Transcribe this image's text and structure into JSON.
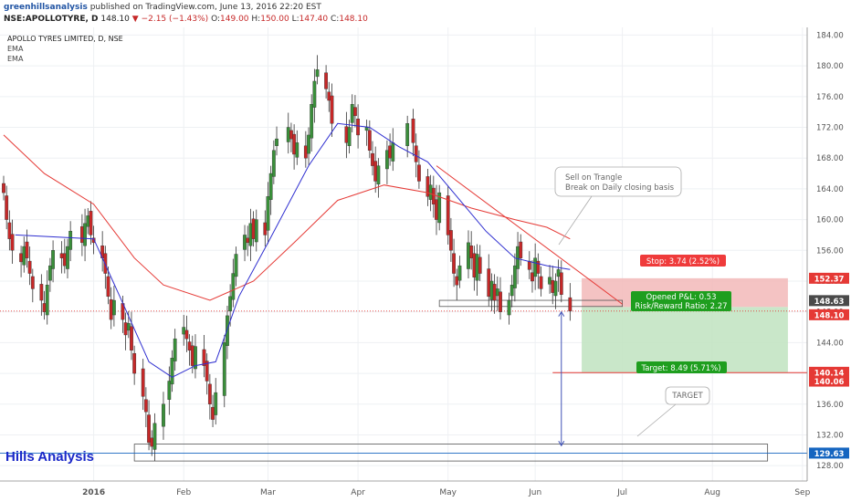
{
  "header": {
    "author": "greenhillsanalysis",
    "published": "published on TradingView.com, June 13, 2016 22:20 EST",
    "symbol": "NSE:APOLLOTYRE, D",
    "last": "148.10",
    "change": "−2.15 (−1.43%)",
    "o_label": "O:",
    "o_value": "149.00",
    "h_label": "H:",
    "h_value": "150.00",
    "l_label": "L:",
    "l_value": "147.40",
    "c_label": "C:",
    "c_value": "148.10"
  },
  "chart_title": "APOLLO TYRES LIMITED, D, NSE",
  "indicators": [
    "EMA",
    "EMA"
  ],
  "brand": "Hills Analysis",
  "annotations": {
    "sell_note_line1": "Sell on Trangle",
    "sell_note_line2": "Break on Daily closing basis",
    "target_note": "TARGET",
    "stop_label": "Stop: 3.74 (2.52%)",
    "pnl_line1": "Opened P&L: 0.53",
    "pnl_line2": "Risk/Reward Ratio: 2.27",
    "target_label": "Target: 8.49 (5.71%)"
  },
  "price_tags": [
    {
      "text": "152.37",
      "value": 152.37,
      "color": "#e53935"
    },
    {
      "text": "148.63",
      "value": 148.63,
      "color": "#4a4a4a"
    },
    {
      "text": "148.10",
      "value": 148.1,
      "color": "#e53935"
    },
    {
      "text": "140.14",
      "value": 140.14,
      "color": "#e53935"
    },
    {
      "text": "140.06",
      "value": 140.06,
      "color": "#e53935"
    },
    {
      "text": "129.63",
      "value": 129.63,
      "color": "#1565c0"
    }
  ],
  "colors": {
    "up": "#3a8f3a",
    "down": "#c62828",
    "ema_fast": "#2f2fd0",
    "ema_slow": "#e53935",
    "stop_zone": "#f2b8b8",
    "target_zone": "#bfe3bf"
  },
  "chart_data": {
    "type": "candlestick",
    "title": "APOLLO TYRES LIMITED, D, NSE",
    "ylim": [
      126,
      185
    ],
    "y_ticks": [
      "128.00",
      "132.00",
      "136.00",
      "140.00",
      "144.00",
      "148.00",
      "152.00",
      "156.00",
      "160.00",
      "164.00",
      "168.00",
      "172.00",
      "176.00",
      "180.00",
      "184.00"
    ],
    "y_tick_values": [
      128,
      132,
      136,
      140,
      144,
      148,
      152,
      156,
      160,
      164,
      168,
      172,
      176,
      180,
      184
    ],
    "x_ticks": [
      "2016",
      "Feb",
      "Mar",
      "Apr",
      "May",
      "Jun",
      "Jul",
      "Aug",
      "Sep"
    ],
    "x_tick_dates": [
      "2016-01-01",
      "2016-02-01",
      "2016-03-01",
      "2016-04-01",
      "2016-05-02",
      "2016-06-01",
      "2016-07-01",
      "2016-08-01",
      "2016-09-01"
    ],
    "start_date": "2015-12-01",
    "end_date": "2016-09-02",
    "closes": [
      [
        "2015-12-01",
        163.5
      ],
      [
        "2015-12-02",
        160.0
      ],
      [
        "2015-12-03",
        157.5
      ],
      [
        "2015-12-04",
        156.0
      ],
      [
        "2015-12-07",
        154.5
      ],
      [
        "2015-12-08",
        156.5
      ],
      [
        "2015-12-09",
        155.0
      ],
      [
        "2015-12-10",
        153.0
      ],
      [
        "2015-12-11",
        151.0
      ],
      [
        "2015-12-14",
        149.5
      ],
      [
        "2015-12-15",
        148.0
      ],
      [
        "2015-12-16",
        151.5
      ],
      [
        "2015-12-17",
        154.0
      ],
      [
        "2015-12-18",
        156.0
      ],
      [
        "2015-12-21",
        155.0
      ],
      [
        "2015-12-22",
        154.0
      ],
      [
        "2015-12-23",
        156.5
      ],
      [
        "2015-12-24",
        158.5
      ],
      [
        "2015-12-28",
        157.0
      ],
      [
        "2015-12-29",
        159.5
      ],
      [
        "2015-12-30",
        160.5
      ],
      [
        "2015-12-31",
        158.0
      ],
      [
        "2016-01-01",
        157.0
      ],
      [
        "2016-01-04",
        155.0
      ],
      [
        "2016-01-05",
        153.0
      ],
      [
        "2016-01-06",
        150.0
      ],
      [
        "2016-01-07",
        147.0
      ],
      [
        "2016-01-08",
        149.5
      ],
      [
        "2016-01-11",
        147.0
      ],
      [
        "2016-01-12",
        145.0
      ],
      [
        "2016-01-13",
        146.5
      ],
      [
        "2016-01-14",
        143.0
      ],
      [
        "2016-01-15",
        140.0
      ],
      [
        "2016-01-18",
        137.0
      ],
      [
        "2016-01-19",
        135.0
      ],
      [
        "2016-01-20",
        131.0
      ],
      [
        "2016-01-21",
        130.5
      ],
      [
        "2016-01-22",
        133.5
      ],
      [
        "2016-01-25",
        136.0
      ],
      [
        "2016-01-27",
        139.0
      ],
      [
        "2016-01-28",
        142.0
      ],
      [
        "2016-01-29",
        144.5
      ],
      [
        "2016-02-01",
        146.0
      ],
      [
        "2016-02-02",
        144.5
      ],
      [
        "2016-02-03",
        143.0
      ],
      [
        "2016-02-04",
        141.0
      ],
      [
        "2016-02-05",
        143.5
      ],
      [
        "2016-02-08",
        141.0
      ],
      [
        "2016-02-09",
        139.0
      ],
      [
        "2016-02-10",
        136.0
      ],
      [
        "2016-02-11",
        134.0
      ],
      [
        "2016-02-12",
        137.5
      ],
      [
        "2016-02-15",
        144.0
      ],
      [
        "2016-02-16",
        147.5
      ],
      [
        "2016-02-17",
        150.0
      ],
      [
        "2016-02-18",
        153.0
      ],
      [
        "2016-02-19",
        155.5
      ],
      [
        "2016-02-22",
        158.0
      ],
      [
        "2016-02-23",
        157.0
      ],
      [
        "2016-02-24",
        159.5
      ],
      [
        "2016-02-25",
        157.5
      ],
      [
        "2016-02-26",
        160.0
      ],
      [
        "2016-02-29",
        158.0
      ],
      [
        "2016-03-01",
        163.0
      ],
      [
        "2016-03-02",
        166.0
      ],
      [
        "2016-03-03",
        169.0
      ],
      [
        "2016-03-04",
        170.5
      ],
      [
        "2016-03-08",
        172.0
      ],
      [
        "2016-03-09",
        170.5
      ],
      [
        "2016-03-10",
        168.5
      ],
      [
        "2016-03-11",
        170.0
      ],
      [
        "2016-03-14",
        168.0
      ],
      [
        "2016-03-15",
        171.0
      ],
      [
        "2016-03-16",
        175.0
      ],
      [
        "2016-03-17",
        178.0
      ],
      [
        "2016-03-18",
        179.5
      ],
      [
        "2016-03-21",
        177.0
      ],
      [
        "2016-03-22",
        175.5
      ],
      [
        "2016-03-23",
        172.5
      ],
      [
        "2016-03-28",
        170.0
      ],
      [
        "2016-03-29",
        172.0
      ],
      [
        "2016-03-30",
        175.0
      ],
      [
        "2016-03-31",
        173.5
      ],
      [
        "2016-04-01",
        171.0
      ],
      [
        "2016-04-04",
        172.0
      ],
      [
        "2016-04-05",
        169.0
      ],
      [
        "2016-04-06",
        167.0
      ],
      [
        "2016-04-07",
        165.0
      ],
      [
        "2016-04-08",
        167.0
      ],
      [
        "2016-04-11",
        169.0
      ],
      [
        "2016-04-12",
        168.0
      ],
      [
        "2016-04-13",
        170.0
      ],
      [
        "2016-04-18",
        172.5
      ],
      [
        "2016-04-20",
        170.0
      ],
      [
        "2016-04-21",
        167.5
      ],
      [
        "2016-04-22",
        165.0
      ],
      [
        "2016-04-25",
        163.0
      ],
      [
        "2016-04-26",
        164.5
      ],
      [
        "2016-04-27",
        162.0
      ],
      [
        "2016-04-28",
        160.0
      ],
      [
        "2016-04-29",
        163.5
      ],
      [
        "2016-05-02",
        158.0
      ],
      [
        "2016-05-03",
        156.0
      ],
      [
        "2016-05-04",
        153.0
      ],
      [
        "2016-05-05",
        151.5
      ],
      [
        "2016-05-06",
        154.0
      ],
      [
        "2016-05-09",
        157.0
      ],
      [
        "2016-05-10",
        155.0
      ],
      [
        "2016-05-11",
        152.5
      ],
      [
        "2016-05-12",
        155.5
      ],
      [
        "2016-05-13",
        153.0
      ],
      [
        "2016-05-16",
        150.0
      ],
      [
        "2016-05-17",
        152.0
      ],
      [
        "2016-05-18",
        149.5
      ],
      [
        "2016-05-19",
        151.0
      ],
      [
        "2016-05-20",
        148.0
      ],
      [
        "2016-05-23",
        149.5
      ],
      [
        "2016-05-24",
        151.5
      ],
      [
        "2016-05-25",
        154.0
      ],
      [
        "2016-05-26",
        156.5
      ],
      [
        "2016-05-27",
        155.0
      ],
      [
        "2016-05-30",
        153.5
      ],
      [
        "2016-05-31",
        152.0
      ],
      [
        "2016-06-01",
        155.0
      ],
      [
        "2016-06-02",
        153.0
      ],
      [
        "2016-06-03",
        151.0
      ],
      [
        "2016-06-06",
        152.5
      ],
      [
        "2016-06-07",
        150.5
      ],
      [
        "2016-06-08",
        152.0
      ],
      [
        "2016-06-09",
        153.5
      ],
      [
        "2016-06-10",
        150.25
      ],
      [
        "2016-06-13",
        148.1
      ]
    ],
    "ema_fast_curve": [
      [
        "2015-12-05",
        158
      ],
      [
        "2016-01-01",
        157.5
      ],
      [
        "2016-01-10",
        150
      ],
      [
        "2016-01-20",
        141.5
      ],
      [
        "2016-01-28",
        139.5
      ],
      [
        "2016-02-05",
        141
      ],
      [
        "2016-02-12",
        141.5
      ],
      [
        "2016-02-20",
        150
      ],
      [
        "2016-03-01",
        157
      ],
      [
        "2016-03-15",
        167
      ],
      [
        "2016-03-25",
        172.5
      ],
      [
        "2016-04-05",
        172
      ],
      [
        "2016-04-15",
        169.5
      ],
      [
        "2016-04-25",
        167.5
      ],
      [
        "2016-05-05",
        163
      ],
      [
        "2016-05-15",
        158.5
      ],
      [
        "2016-05-25",
        155
      ],
      [
        "2016-06-05",
        154
      ],
      [
        "2016-06-13",
        153.5
      ]
    ],
    "ema_slow_curve": [
      [
        "2015-12-01",
        171
      ],
      [
        "2015-12-15",
        166
      ],
      [
        "2016-01-01",
        162
      ],
      [
        "2016-01-15",
        155
      ],
      [
        "2016-01-25",
        151.5
      ],
      [
        "2016-02-10",
        149.5
      ],
      [
        "2016-02-25",
        152
      ],
      [
        "2016-03-10",
        157
      ],
      [
        "2016-03-25",
        162.5
      ],
      [
        "2016-04-10",
        164.5
      ],
      [
        "2016-04-25",
        163.5
      ],
      [
        "2016-05-10",
        161.5
      ],
      [
        "2016-05-25",
        160
      ],
      [
        "2016-06-05",
        159
      ],
      [
        "2016-06-13",
        157.5
      ]
    ],
    "trendline": {
      "from": [
        "2016-04-28",
        167
      ],
      "to": [
        "2016-07-01",
        149
      ]
    },
    "support_box": {
      "from_date": "2016-04-29",
      "to_date": "2016-07-01",
      "high": 149.5,
      "low": 148.7
    },
    "target_box": {
      "from_date": "2016-01-15",
      "to_date": "2016-08-20",
      "high": 130.8,
      "low": 128.6
    },
    "arrow": {
      "date": "2016-06-10",
      "from": 148.0,
      "to": 130.6
    },
    "position": {
      "from_date": "2016-06-17",
      "to_date": "2016-08-27",
      "entry": 148.63,
      "stop": 152.37,
      "target": 140.14
    }
  }
}
